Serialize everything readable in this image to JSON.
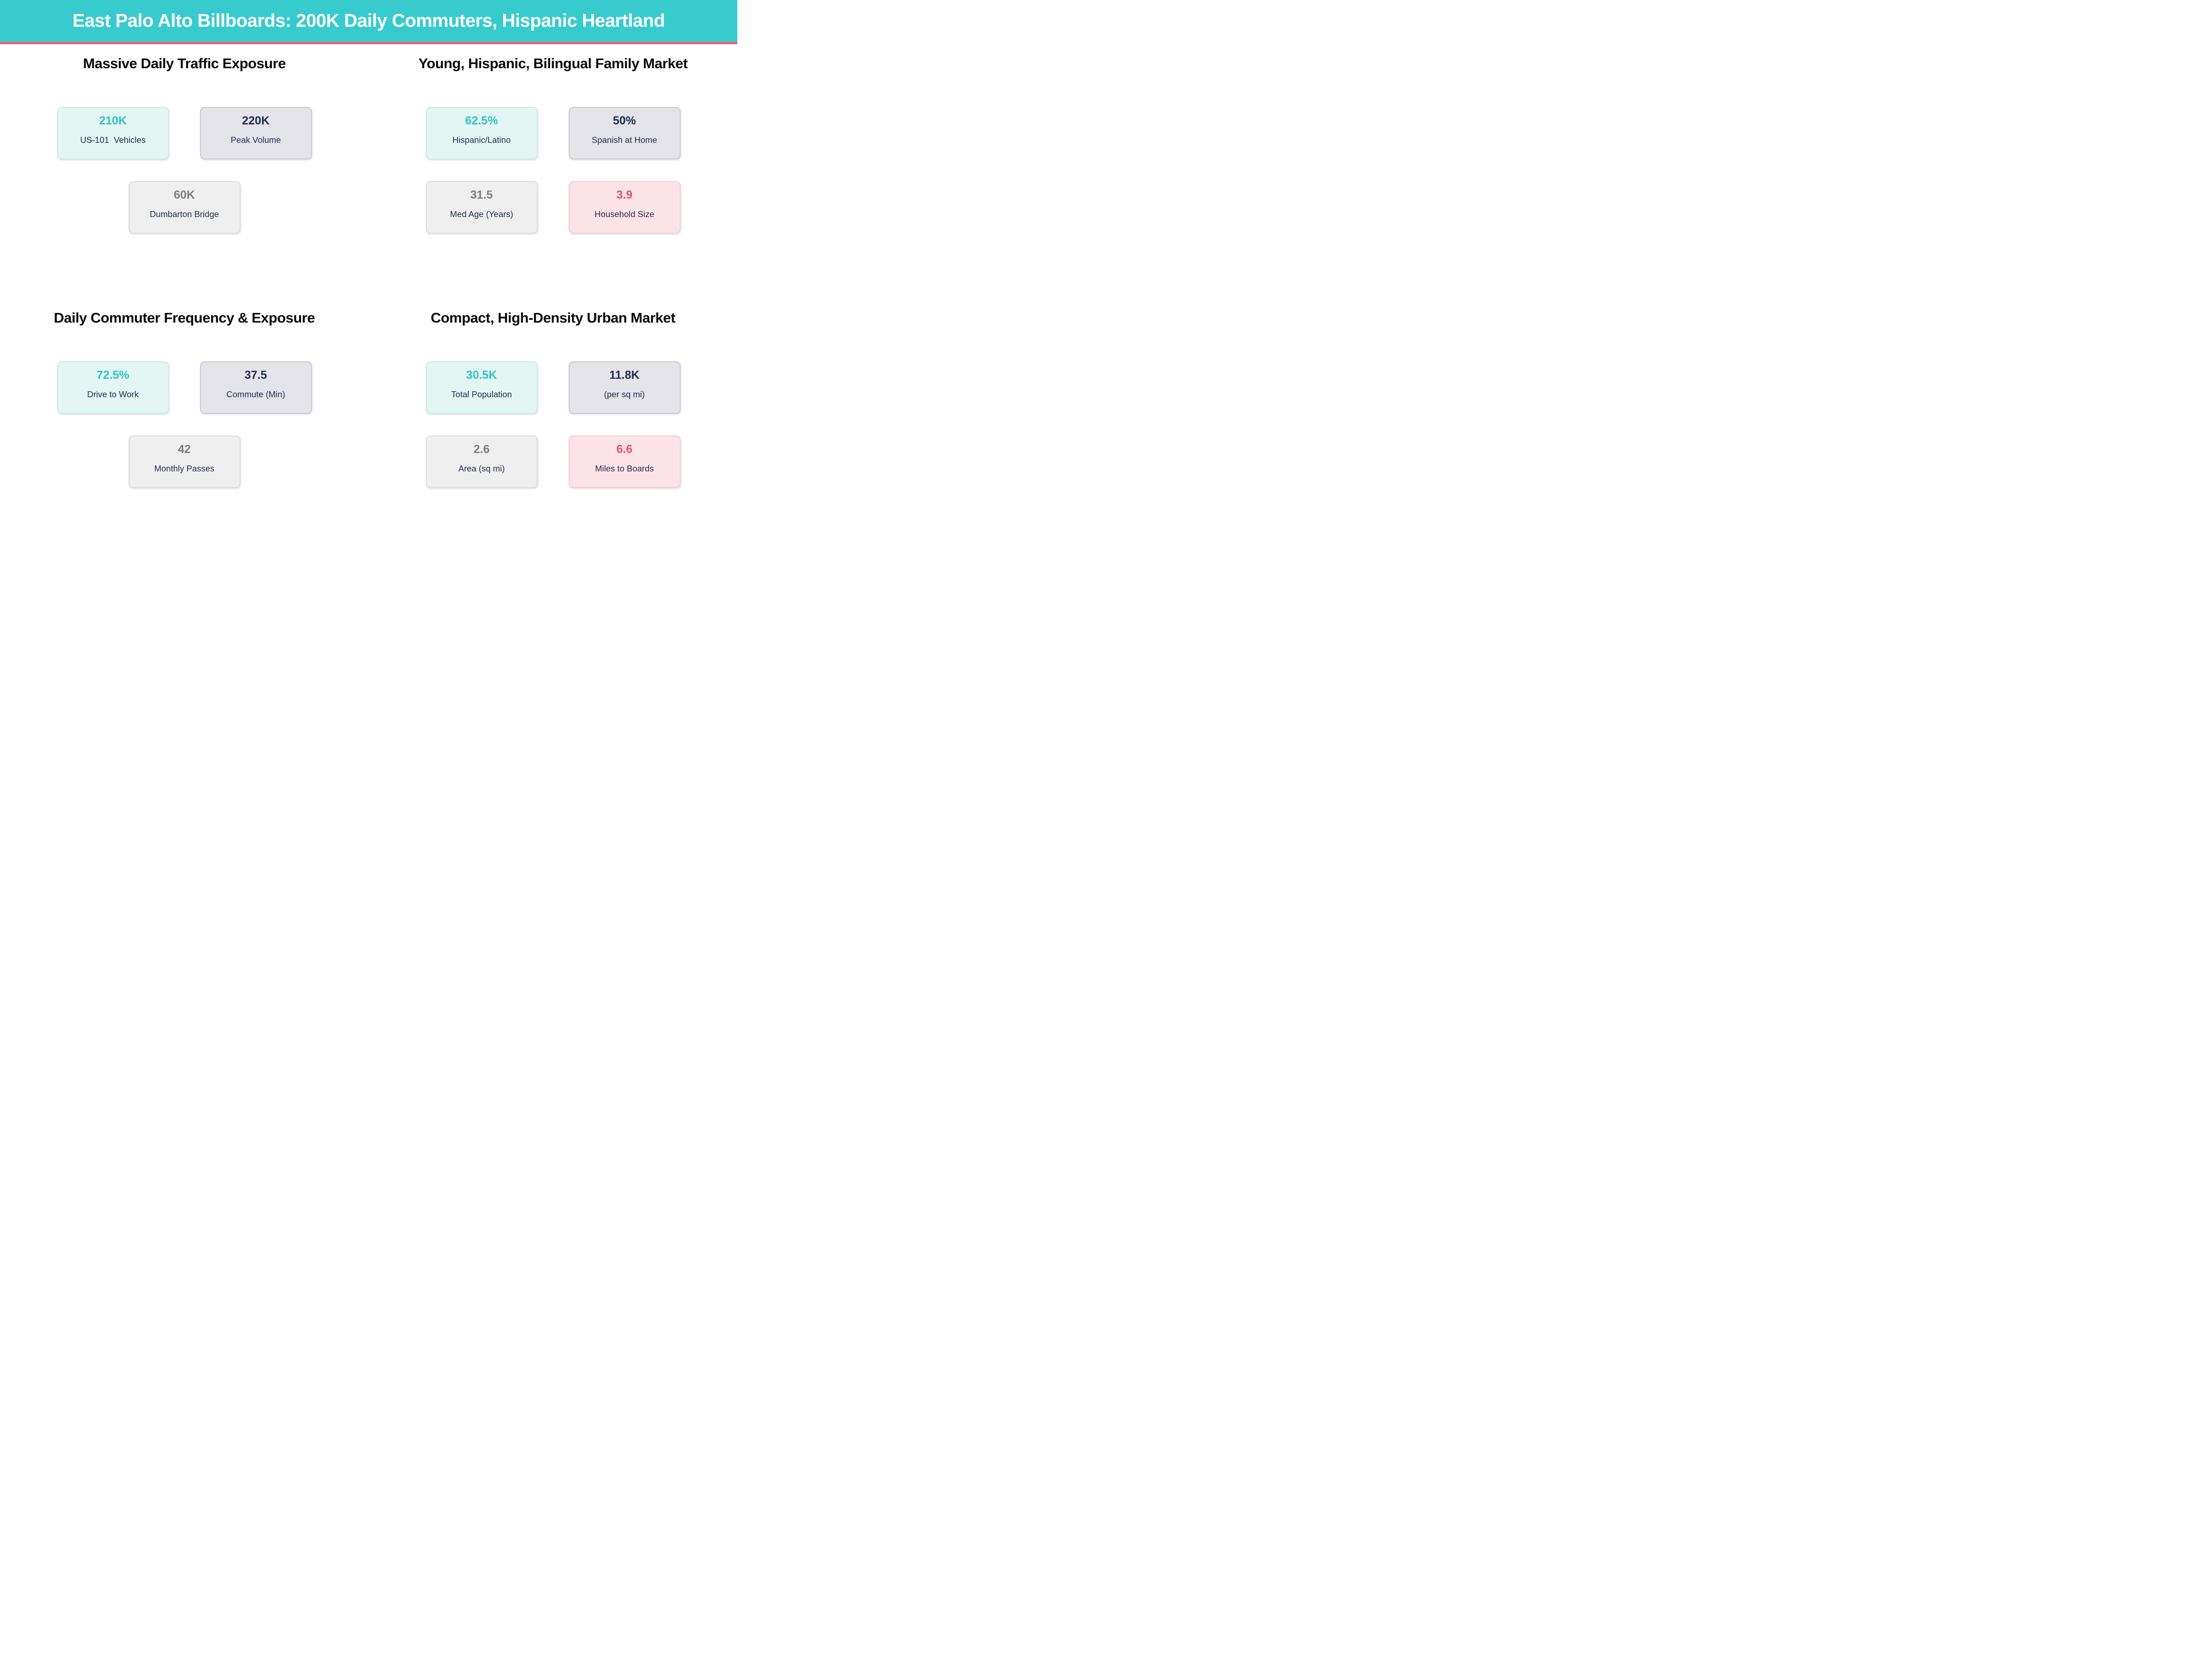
{
  "header": {
    "title": "East Palo Alto Billboards: 200K Daily Commuters, Hispanic Heartland"
  },
  "quadrants": [
    {
      "title": "Massive Daily Traffic Exposure",
      "cards": [
        {
          "value": "210K",
          "label": "US-101  Vehicles",
          "style": "teal"
        },
        {
          "value": "220K",
          "label": "Peak Volume",
          "style": "lavender"
        },
        {
          "value": "60K",
          "label": "Dumbarton Bridge",
          "style": "gray"
        }
      ]
    },
    {
      "title": "Young, Hispanic, Bilingual Family Market",
      "cards": [
        {
          "value": "62.5%",
          "label": "Hispanic/Latino",
          "style": "teal"
        },
        {
          "value": "50%",
          "label": "Spanish at Home",
          "style": "lavender"
        },
        {
          "value": "31.5",
          "label": "Med Age (Years)",
          "style": "gray"
        },
        {
          "value": "3.9",
          "label": "Household Size",
          "style": "pink"
        }
      ]
    },
    {
      "title": "Daily Commuter Frequency & Exposure",
      "cards": [
        {
          "value": "72.5%",
          "label": "Drive to Work",
          "style": "teal"
        },
        {
          "value": "37.5",
          "label": "Commute (Min)",
          "style": "lavender"
        },
        {
          "value": "42",
          "label": "Monthly Passes",
          "style": "gray"
        }
      ]
    },
    {
      "title": "Compact, High-Density Urban Market",
      "cards": [
        {
          "value": "30.5K",
          "label": "Total Population",
          "style": "teal"
        },
        {
          "value": "11.8K",
          "label": "(per sq mi)",
          "style": "lavender"
        },
        {
          "value": "2.6",
          "label": "Area (sq mi)",
          "style": "gray"
        },
        {
          "value": "6.6",
          "label": "Miles to Boards",
          "style": "pink"
        }
      ]
    }
  ],
  "chart_data": [
    {
      "type": "table",
      "title": "Massive Daily Traffic Exposure",
      "items": [
        {
          "label": "US-101  Vehicles",
          "value": "210K",
          "numeric": 210000
        },
        {
          "label": "Peak Volume",
          "value": "220K",
          "numeric": 220000
        },
        {
          "label": "Dumbarton Bridge",
          "value": "60K",
          "numeric": 60000
        }
      ]
    },
    {
      "type": "table",
      "title": "Young, Hispanic, Bilingual Family Market",
      "items": [
        {
          "label": "Hispanic/Latino",
          "value": "62.5%",
          "numeric": 62.5
        },
        {
          "label": "Spanish at Home",
          "value": "50%",
          "numeric": 50
        },
        {
          "label": "Med Age (Years)",
          "value": "31.5",
          "numeric": 31.5
        },
        {
          "label": "Household Size",
          "value": "3.9",
          "numeric": 3.9
        }
      ]
    },
    {
      "type": "table",
      "title": "Daily Commuter Frequency & Exposure",
      "items": [
        {
          "label": "Drive to Work",
          "value": "72.5%",
          "numeric": 72.5
        },
        {
          "label": "Commute (Min)",
          "value": "37.5",
          "numeric": 37.5
        },
        {
          "label": "Monthly Passes",
          "value": "42",
          "numeric": 42
        }
      ]
    },
    {
      "type": "table",
      "title": "Compact, High-Density Urban Market",
      "items": [
        {
          "label": "Total Population",
          "value": "30.5K",
          "numeric": 30500
        },
        {
          "label": "(per sq mi)",
          "value": "11.8K",
          "numeric": 11800
        },
        {
          "label": "Area (sq mi)",
          "value": "2.6",
          "numeric": 2.6
        },
        {
          "label": "Miles to Boards",
          "value": "6.6",
          "numeric": 6.6
        }
      ]
    }
  ],
  "colors": {
    "header_bg": "#38cbce",
    "header_text": "#ffffff",
    "accent_bar": "#ec5c74",
    "title_color": "#0b0b0b",
    "navy": "#242c4e",
    "teal_value": "#2fc3c7",
    "gray_value": "#7d7d7d",
    "pink_value": "#e84f6e",
    "teal_card_bg": "#e3f6f4",
    "teal_card_border": "#c6ebe7",
    "lavender_card_bg": "#e3e3e9",
    "lavender_card_border": "#c8c8d2",
    "gray_card_bg": "#efeff0",
    "gray_card_border": "#dcdcdd",
    "pink_card_bg": "#fce3e8",
    "pink_card_border": "#f7c9d3",
    "page_bg": "#ffffff"
  }
}
